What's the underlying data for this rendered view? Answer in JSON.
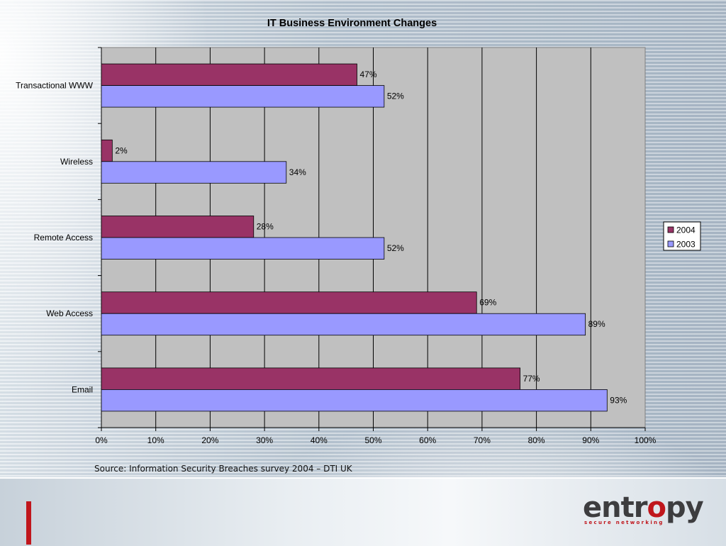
{
  "chart_data": {
    "type": "bar",
    "orientation": "horizontal",
    "title": "IT Business Environment Changes",
    "categories": [
      "Transactional WWW",
      "Wireless",
      "Remote Access",
      "Web Access",
      "Email"
    ],
    "series": [
      {
        "name": "2004",
        "color": "#993366",
        "values": [
          47,
          2,
          28,
          69,
          77
        ],
        "labels": [
          "47%",
          "2%",
          "28%",
          "69%",
          "77%"
        ]
      },
      {
        "name": "2003",
        "color": "#9999ff",
        "values": [
          52,
          34,
          52,
          89,
          93
        ],
        "labels": [
          "52%",
          "34%",
          "52%",
          "89%",
          "93%"
        ]
      }
    ],
    "xlim": [
      0,
      100
    ],
    "x_ticks": [
      "0%",
      "10%",
      "20%",
      "30%",
      "40%",
      "50%",
      "60%",
      "70%",
      "80%",
      "90%",
      "100%"
    ],
    "grid": true,
    "legend_position": "right",
    "plot_background": "#c0c0c0"
  },
  "source_note": "Source: Information Security Breaches survey 2004 – DTI UK",
  "logo": {
    "word_before": "entr",
    "word_accent": "o",
    "word_after": "py",
    "tagline": "secure networking"
  }
}
